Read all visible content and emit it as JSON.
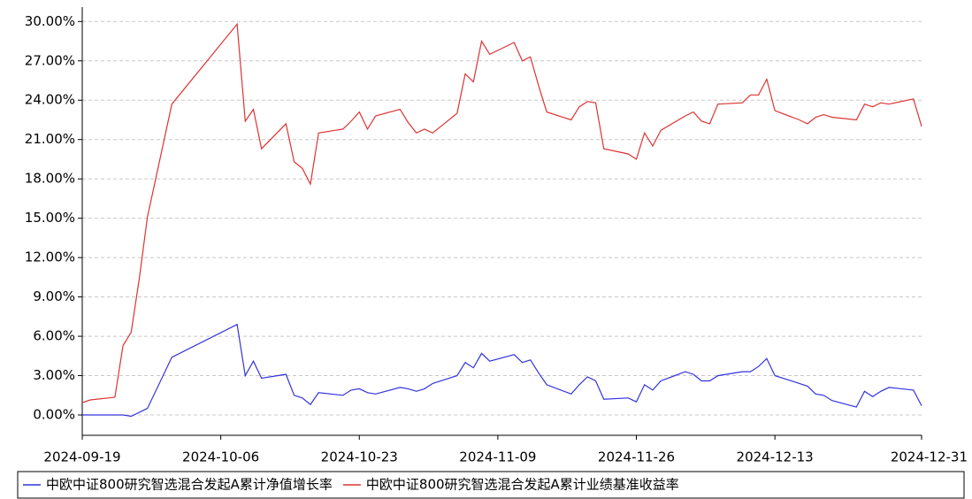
{
  "chart_data": {
    "type": "line",
    "x": [
      "2024-09-19",
      "2024-09-20",
      "2024-09-23",
      "2024-09-24",
      "2024-09-25",
      "2024-09-26",
      "2024-09-27",
      "2024-09-30",
      "2024-10-08",
      "2024-10-09",
      "2024-10-10",
      "2024-10-11",
      "2024-10-14",
      "2024-10-15",
      "2024-10-16",
      "2024-10-17",
      "2024-10-18",
      "2024-10-21",
      "2024-10-22",
      "2024-10-23",
      "2024-10-24",
      "2024-10-25",
      "2024-10-28",
      "2024-10-29",
      "2024-10-30",
      "2024-10-31",
      "2024-11-01",
      "2024-11-04",
      "2024-11-05",
      "2024-11-06",
      "2024-11-07",
      "2024-11-08",
      "2024-11-11",
      "2024-11-12",
      "2024-11-13",
      "2024-11-14",
      "2024-11-15",
      "2024-11-18",
      "2024-11-19",
      "2024-11-20",
      "2024-11-21",
      "2024-11-22",
      "2024-11-25",
      "2024-11-26",
      "2024-11-27",
      "2024-11-28",
      "2024-11-29",
      "2024-12-02",
      "2024-12-03",
      "2024-12-04",
      "2024-12-05",
      "2024-12-06",
      "2024-12-09",
      "2024-12-10",
      "2024-12-11",
      "2024-12-12",
      "2024-12-13",
      "2024-12-16",
      "2024-12-17",
      "2024-12-18",
      "2024-12-19",
      "2024-12-20",
      "2024-12-23",
      "2024-12-24",
      "2024-12-25",
      "2024-12-26",
      "2024-12-27",
      "2024-12-30",
      "2024-12-31"
    ],
    "series": [
      {
        "name": "中欧中证800研究智选混合发起A累计净值增长率",
        "color": "#3333dd",
        "values": [
          0,
          0,
          0,
          0,
          -0.1,
          0.2,
          0.5,
          4.4,
          6.9,
          3.0,
          4.1,
          2.8,
          3.1,
          1.5,
          1.3,
          0.8,
          1.7,
          1.5,
          1.9,
          2.0,
          1.7,
          1.6,
          2.1,
          2.0,
          1.8,
          2.0,
          2.4,
          3.0,
          4.0,
          3.6,
          4.7,
          4.1,
          4.6,
          4.0,
          4.2,
          3.2,
          2.3,
          1.6,
          2.3,
          2.9,
          2.6,
          1.2,
          1.3,
          1.0,
          2.3,
          1.9,
          2.6,
          3.3,
          3.1,
          2.6,
          2.6,
          3.0,
          3.3,
          3.3,
          3.7,
          4.3,
          3.0,
          2.4,
          2.2,
          1.6,
          1.5,
          1.1,
          0.6,
          1.8,
          1.4,
          1.8,
          2.1,
          1.9,
          0.7
        ]
      },
      {
        "name": "中欧中证800研究智选混合发起A累计业绩基准收益率",
        "color": "#dd3333",
        "values": [
          0.94,
          1.15,
          1.35,
          5.3,
          6.3,
          10.4,
          15.1,
          23.7,
          29.8,
          22.4,
          23.3,
          20.3,
          22.2,
          19.3,
          18.8,
          17.6,
          21.5,
          21.8,
          22.4,
          23.1,
          21.8,
          22.8,
          23.3,
          22.3,
          21.5,
          21.8,
          21.5,
          23.0,
          26.0,
          25.4,
          28.5,
          27.5,
          28.4,
          27.0,
          27.3,
          25.1,
          23.1,
          22.5,
          23.5,
          23.9,
          23.8,
          20.3,
          19.9,
          19.5,
          21.5,
          20.5,
          21.7,
          22.8,
          23.1,
          22.4,
          22.2,
          23.7,
          23.8,
          24.4,
          24.4,
          25.6,
          23.2,
          22.5,
          22.2,
          22.7,
          22.9,
          22.7,
          22.5,
          23.7,
          23.5,
          23.8,
          23.7,
          24.1,
          22.0
        ]
      }
    ],
    "xlim": [
      "2024-09-19",
      "2024-12-31"
    ],
    "xticks": [
      "2024-09-19",
      "2024-10-06",
      "2024-10-23",
      "2024-11-09",
      "2024-11-26",
      "2024-12-13",
      "2024-12-31"
    ],
    "ylim": [
      -1.55,
      31.1
    ],
    "yticks": [
      {
        "value": 0,
        "label": "0.00%"
      },
      {
        "value": 3,
        "label": "3.00%"
      },
      {
        "value": 6,
        "label": "6.00%"
      },
      {
        "value": 9,
        "label": "9.00%"
      },
      {
        "value": 12,
        "label": "12.00%"
      },
      {
        "value": 15,
        "label": "15.00%"
      },
      {
        "value": 18,
        "label": "18.00%"
      },
      {
        "value": 21,
        "label": "21.00%"
      },
      {
        "value": 24,
        "label": "24.00%"
      },
      {
        "value": 27,
        "label": "27.00%"
      },
      {
        "value": 30,
        "label": "30.00%"
      }
    ],
    "grid": true
  }
}
